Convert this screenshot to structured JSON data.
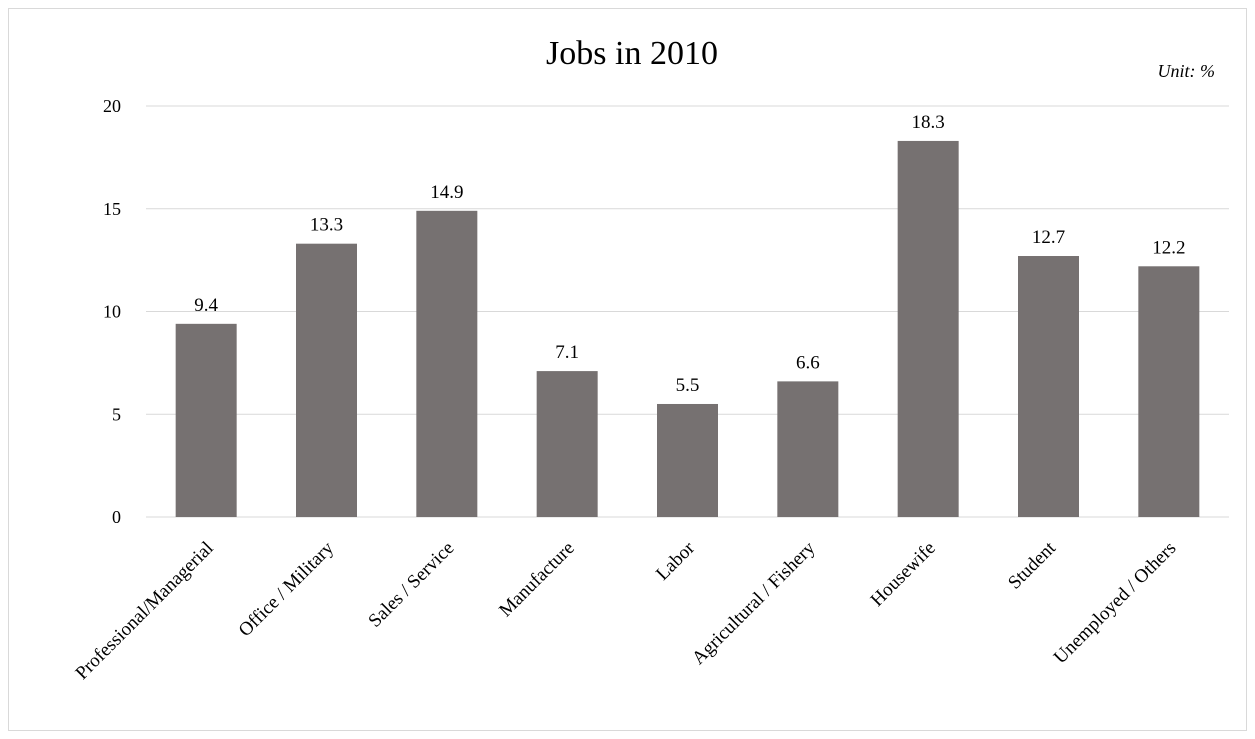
{
  "chart_data": {
    "type": "bar",
    "title": "Jobs in 2010",
    "unit_label": "Unit: %",
    "xlabel": "",
    "ylabel": "",
    "categories": [
      "Professional/Managerial",
      "Office / Military",
      "Sales / Service",
      "Manufacture",
      "Labor",
      "Agricultural / Fishery",
      "Housewife",
      "Student",
      "Unemployed / Others"
    ],
    "values": [
      9.4,
      13.3,
      14.9,
      7.1,
      5.5,
      6.6,
      18.3,
      12.7,
      12.2
    ],
    "data_labels": [
      "9.4",
      "13.3",
      "14.9",
      "7.1",
      "5.5",
      "6.6",
      "18.3",
      "12.7",
      "12.2"
    ],
    "ylim": [
      0,
      20
    ],
    "yticks": [
      0,
      5,
      10,
      15,
      20
    ],
    "grid": true,
    "legend": "none",
    "bar_color": "#767171",
    "grid_color": "#d9d9d9"
  }
}
